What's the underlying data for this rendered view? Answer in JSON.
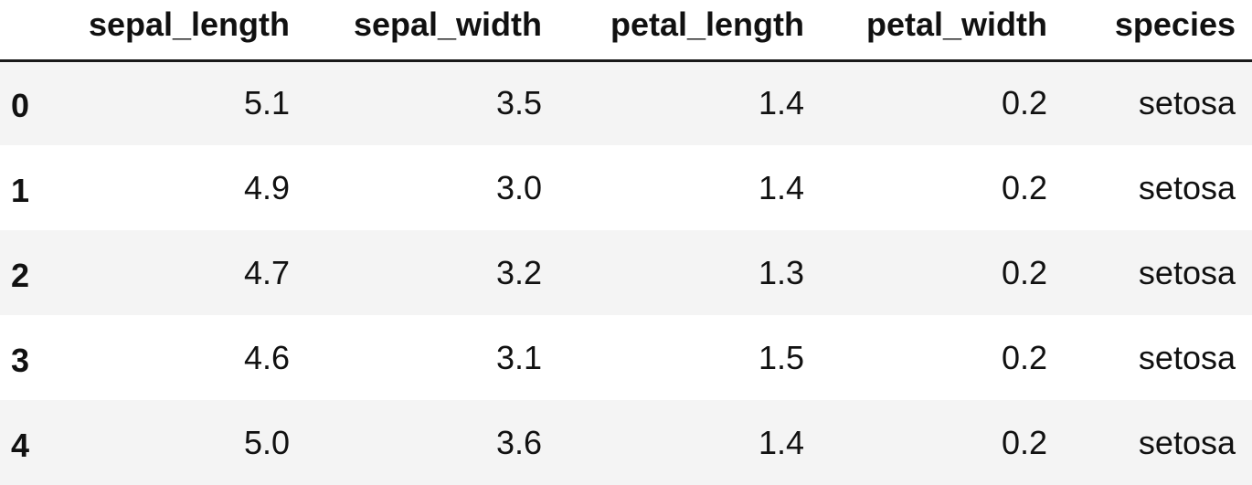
{
  "table": {
    "columns": [
      "",
      "sepal_length",
      "sepal_width",
      "petal_length",
      "petal_width",
      "species"
    ],
    "rows": [
      {
        "index": "0",
        "cells": [
          "5.1",
          "3.5",
          "1.4",
          "0.2",
          "setosa"
        ]
      },
      {
        "index": "1",
        "cells": [
          "4.9",
          "3.0",
          "1.4",
          "0.2",
          "setosa"
        ]
      },
      {
        "index": "2",
        "cells": [
          "4.7",
          "3.2",
          "1.3",
          "0.2",
          "setosa"
        ]
      },
      {
        "index": "3",
        "cells": [
          "4.6",
          "3.1",
          "1.5",
          "0.2",
          "setosa"
        ]
      },
      {
        "index": "4",
        "cells": [
          "5.0",
          "3.6",
          "1.4",
          "0.2",
          "setosa"
        ]
      }
    ]
  },
  "colors": {
    "odd_row": "#f4f4f4",
    "even_row": "#ffffff",
    "header_rule": "#1a1a1a"
  }
}
